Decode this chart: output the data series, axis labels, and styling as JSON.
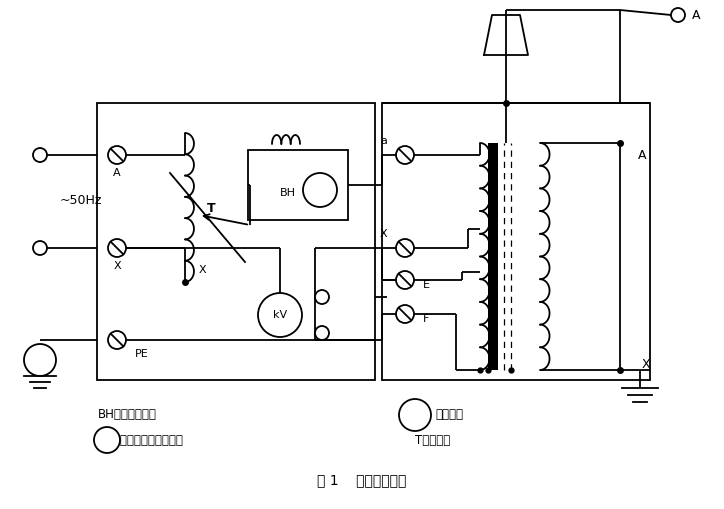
{
  "title": "图 1    调压工作原理",
  "bg": "#ffffff",
  "lc": "#000000",
  "lw": 1.3,
  "legend1a": "BH－电流互感器",
  "legend1b": "（kV）－高压电压显示表",
  "legend2a": "（A）－电流表",
  "legend2b": "T－调压器"
}
